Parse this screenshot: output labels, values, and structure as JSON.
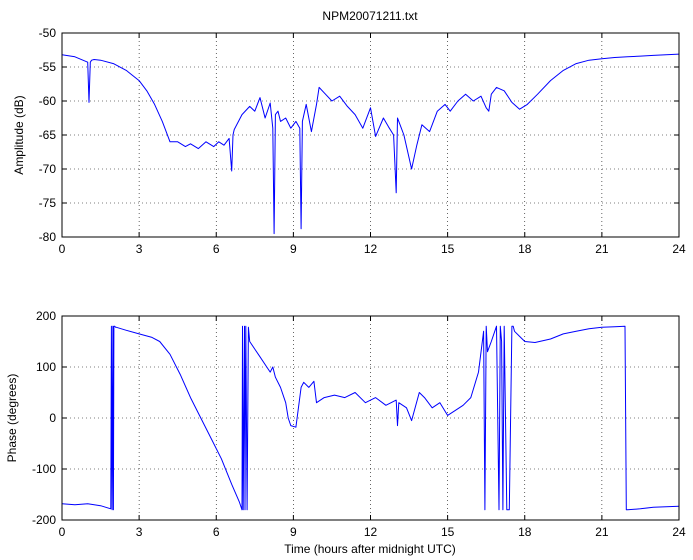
{
  "chart_data": [
    {
      "type": "line",
      "title": "NPM20071211.txt",
      "xlabel": "",
      "ylabel": "Amplitude (dB)",
      "xlim": [
        0,
        24
      ],
      "ylim": [
        -80,
        -50
      ],
      "xticks": [
        0,
        3,
        6,
        9,
        12,
        15,
        18,
        21,
        24
      ],
      "yticks": [
        -80,
        -75,
        -70,
        -65,
        -60,
        -55,
        -50
      ],
      "grid": true,
      "line_color": "#0000ff",
      "series": [
        {
          "name": "",
          "x": [
            0,
            0.5,
            1.0,
            1.05,
            1.1,
            1.15,
            1.25,
            1.5,
            2.0,
            2.5,
            3.0,
            3.3,
            3.6,
            3.9,
            4.2,
            4.5,
            4.8,
            5.0,
            5.3,
            5.6,
            5.9,
            6.1,
            6.3,
            6.5,
            6.6,
            6.65,
            6.7,
            7.0,
            7.3,
            7.5,
            7.7,
            7.9,
            8.1,
            8.2,
            8.25,
            8.3,
            8.4,
            8.5,
            8.7,
            8.9,
            9.1,
            9.25,
            9.3,
            9.35,
            9.5,
            9.7,
            9.9,
            10.0,
            10.2,
            10.5,
            10.8,
            11.1,
            11.4,
            11.7,
            12.0,
            12.2,
            12.5,
            12.7,
            12.9,
            13.0,
            13.05,
            13.1,
            13.3,
            13.6,
            13.8,
            14.0,
            14.3,
            14.6,
            14.9,
            15.1,
            15.4,
            15.7,
            16.0,
            16.3,
            16.5,
            16.6,
            16.7,
            16.9,
            17.2,
            17.5,
            17.8,
            18.1,
            18.5,
            19.0,
            19.5,
            20.0,
            20.5,
            21.0,
            21.5,
            22.0,
            22.5,
            23.0,
            23.5,
            24.0
          ],
          "values": [
            -53.2,
            -53.5,
            -54.3,
            -60.2,
            -54.3,
            -54.0,
            -53.9,
            -54.0,
            -54.5,
            -55.5,
            -57.0,
            -58.5,
            -60.5,
            -63.0,
            -66.0,
            -66.0,
            -66.7,
            -66.3,
            -67.0,
            -66.0,
            -66.7,
            -66.0,
            -66.5,
            -65.5,
            -70.3,
            -65.0,
            -64.2,
            -62.0,
            -60.8,
            -61.5,
            -59.5,
            -62.5,
            -60.3,
            -64.0,
            -79.5,
            -62.0,
            -61.5,
            -63.0,
            -62.5,
            -64.0,
            -63.0,
            -64.0,
            -78.8,
            -63.0,
            -60.5,
            -64.5,
            -60.5,
            -58.0,
            -58.8,
            -60.0,
            -59.3,
            -60.8,
            -62.0,
            -64.0,
            -61.0,
            -65.2,
            -62.5,
            -63.8,
            -65.0,
            -73.5,
            -62.5,
            -63.0,
            -65.0,
            -70.0,
            -66.5,
            -63.5,
            -64.5,
            -61.5,
            -60.5,
            -61.5,
            -60.0,
            -59.0,
            -60.0,
            -59.3,
            -61.0,
            -61.5,
            -59.0,
            -58.0,
            -58.5,
            -60.2,
            -61.2,
            -60.5,
            -59.0,
            -57.0,
            -55.5,
            -54.5,
            -54.0,
            -53.8,
            -53.6,
            -53.5,
            -53.4,
            -53.3,
            -53.2,
            -53.1
          ]
        }
      ]
    },
    {
      "type": "line",
      "title": "",
      "xlabel": "Time (hours after midnight UTC)",
      "ylabel": "Phase (degrees)",
      "xlim": [
        0,
        24
      ],
      "ylim": [
        -200,
        200
      ],
      "xticks": [
        0,
        3,
        6,
        9,
        12,
        15,
        18,
        21,
        24
      ],
      "yticks": [
        -200,
        -100,
        0,
        100,
        200
      ],
      "grid": true,
      "line_color": "#0000ff",
      "series": [
        {
          "name": "",
          "x": [
            0,
            0.5,
            1.0,
            1.5,
            1.9,
            1.92,
            1.95,
            1.98,
            2.0,
            2.02,
            2.05,
            2.08,
            2.1,
            2.5,
            3.0,
            3.5,
            3.8,
            4.2,
            4.6,
            5.0,
            5.4,
            5.8,
            6.2,
            6.6,
            6.9,
            7.0,
            7.02,
            7.05,
            7.1,
            7.12,
            7.15,
            7.2,
            7.25,
            7.3,
            7.5,
            7.7,
            7.9,
            8.1,
            8.2,
            8.3,
            8.5,
            8.7,
            8.8,
            8.9,
            9.1,
            9.3,
            9.4,
            9.6,
            9.8,
            9.9,
            10.2,
            10.6,
            11.0,
            11.4,
            11.8,
            12.2,
            12.6,
            13.0,
            13.05,
            13.1,
            13.4,
            13.6,
            13.9,
            14.1,
            14.4,
            14.7,
            15.0,
            15.3,
            15.6,
            15.9,
            16.2,
            16.4,
            16.45,
            16.5,
            16.55,
            16.7,
            16.9,
            17.0,
            17.05,
            17.1,
            17.15,
            17.2,
            17.3,
            17.4,
            17.5,
            17.55,
            17.6,
            17.8,
            18.0,
            18.4,
            19.0,
            19.5,
            20.0,
            20.5,
            21.0,
            21.5,
            21.9,
            21.95,
            22.0,
            22.5,
            23.0,
            23.5,
            24.0
          ],
          "values": [
            -168,
            -170,
            -168,
            -172,
            -178,
            180,
            -180,
            180,
            -180,
            180,
            180,
            178,
            178,
            172,
            165,
            158,
            150,
            125,
            85,
            40,
            0,
            -40,
            -80,
            -130,
            -165,
            -180,
            180,
            -180,
            180,
            -180,
            180,
            -180,
            178,
            150,
            135,
            120,
            105,
            90,
            100,
            80,
            60,
            30,
            0,
            -15,
            -18,
            60,
            70,
            60,
            72,
            30,
            40,
            45,
            40,
            50,
            30,
            40,
            25,
            35,
            -15,
            30,
            20,
            -5,
            50,
            40,
            20,
            30,
            5,
            15,
            25,
            40,
            90,
            170,
            -180,
            180,
            130,
            150,
            180,
            -180,
            180,
            150,
            -180,
            180,
            -180,
            -180,
            180,
            180,
            170,
            160,
            150,
            148,
            155,
            165,
            170,
            175,
            178,
            179,
            180,
            -180,
            -180,
            -178,
            -175,
            -174,
            -173
          ]
        }
      ]
    }
  ]
}
